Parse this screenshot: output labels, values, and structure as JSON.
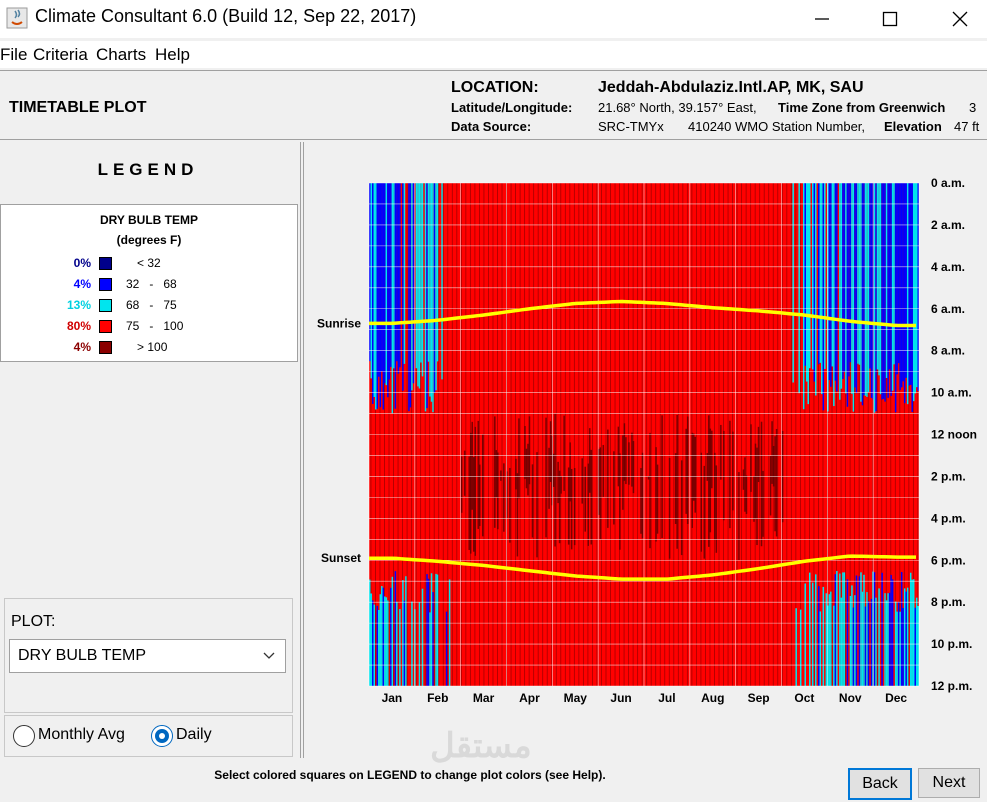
{
  "window": {
    "title": "Climate Consultant 6.0 (Build 12, Sep 22, 2017)",
    "controls": [
      "minimize-icon",
      "maximize-icon",
      "close-icon"
    ]
  },
  "menu": {
    "items": [
      "File",
      "Criteria",
      "Charts",
      "Help"
    ]
  },
  "header": {
    "plot_type": "TIMETABLE PLOT",
    "location_label": "LOCATION:",
    "location_value": "Jeddah-Abdulaziz.Intl.AP, MK, SAU",
    "latlon_label": "Latitude/Longitude:",
    "latlon_value": "21.68° North, 39.157° East,",
    "tz_label": "Time Zone from Greenwich",
    "tz_value": "3",
    "source_label": "Data Source:",
    "source_value": "SRC-TMYx",
    "station_value": "410240 WMO Station Number,",
    "elev_label": "Elevation",
    "elev_value": "47 ft"
  },
  "legend": {
    "title": "LEGEND",
    "heading": "DRY BULB TEMP",
    "units": "(degrees F)",
    "rows": [
      {
        "pct": "0%",
        "color": "#00008b",
        "pct_color": "#00008b",
        "range": "< 32"
      },
      {
        "pct": "4%",
        "color": "#0000ff",
        "pct_color": "#0000ff",
        "range": "32   -   68"
      },
      {
        "pct": "13%",
        "color": "#00e5ee",
        "pct_color": "#00d0e0",
        "range": "68   -   75"
      },
      {
        "pct": "80%",
        "color": "#ff0000",
        "pct_color": "#d00000",
        "range": "75   -   100"
      },
      {
        "pct": "4%",
        "color": "#8b0000",
        "pct_color": "#8b0000",
        "range": "> 100"
      }
    ]
  },
  "plot_selector": {
    "label": "PLOT:",
    "selected": "DRY BULB TEMP",
    "options": [
      "Monthly Avg",
      "Daily"
    ],
    "selected_option": "Daily"
  },
  "footer": {
    "hint": "Select colored squares on LEGEND to change plot colors (see Help).",
    "back": "Back",
    "next": "Next",
    "watermark": "مستقل"
  },
  "chart_data": {
    "type": "heatmap",
    "x_categories": [
      "Jan",
      "Feb",
      "Mar",
      "Apr",
      "May",
      "Jun",
      "Jul",
      "Aug",
      "Sep",
      "Oct",
      "Nov",
      "Dec"
    ],
    "y_ticks": [
      "0 a.m.",
      "2 a.m.",
      "4 a.m.",
      "6 a.m.",
      "8 a.m.",
      "10 a.m.",
      "12 noon",
      "2 p.m.",
      "4 p.m.",
      "6 p.m.",
      "8 p.m.",
      "10 p.m.",
      "12 p.m."
    ],
    "sunrise_label": "Sunrise",
    "sunset_label": "Sunset",
    "sunrise_hours_by_month": [
      6.7,
      6.55,
      6.3,
      6.0,
      5.75,
      5.65,
      5.75,
      5.95,
      6.1,
      6.3,
      6.6,
      6.8
    ],
    "sunset_hours_by_month": [
      17.9,
      18.05,
      18.25,
      18.5,
      18.75,
      18.9,
      18.9,
      18.7,
      18.4,
      18.05,
      17.8,
      17.85
    ],
    "band_colors": {
      "below_32": "#00008b",
      "32_68": "#0000ff",
      "68_75": "#00e5ee",
      "75_100": "#ff0000",
      "above_100": "#8b0000"
    },
    "sun_line_color": "#ffff00"
  }
}
